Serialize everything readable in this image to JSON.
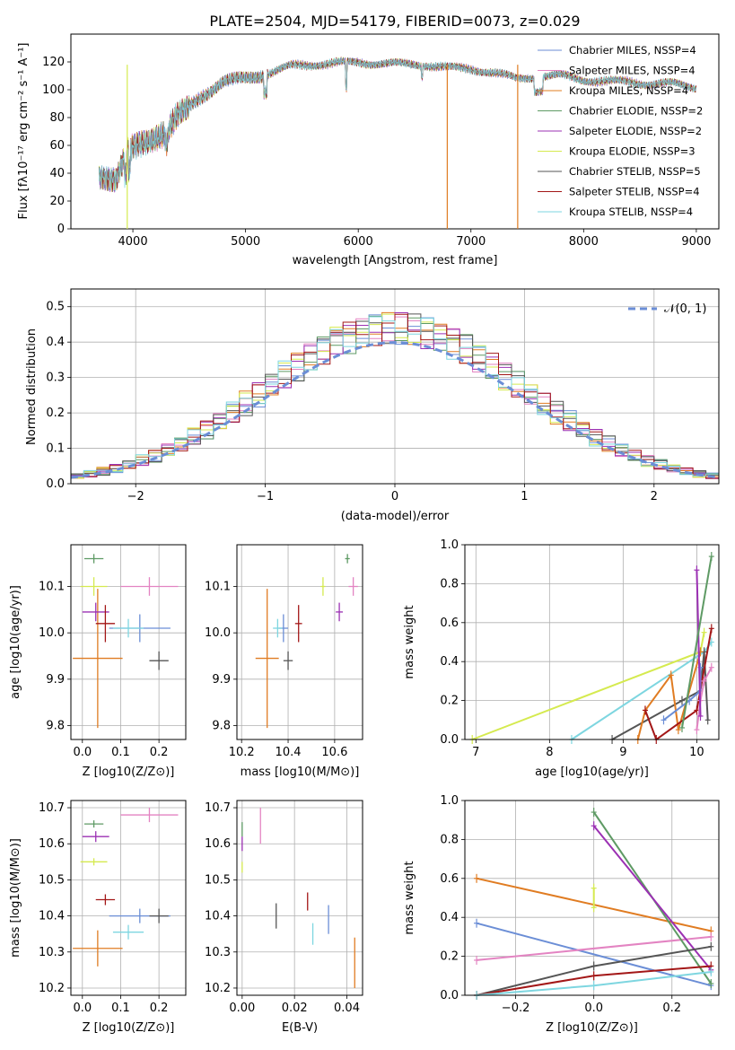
{
  "colors": {
    "chabrier_miles": "#6b8ed6",
    "salpeter_miles": "#e384c2",
    "kroupa_miles": "#e07c22",
    "chabrier_elodie": "#5e9a64",
    "salpeter_elodie": "#9b30b3",
    "kroupa_elodie": "#d5ea4f",
    "chabrier_stelib": "#555555",
    "salpeter_stelib": "#a31717",
    "kroupa_stelib": "#7ed6e0",
    "normal_curve": "#6b8ed6"
  },
  "chart_data": [
    {
      "id": "spectrum",
      "type": "line",
      "title": "PLATE=2504, MJD=54179, FIBERID=0073, z=0.029",
      "xlabel": "wavelength [Angstrom, rest frame]",
      "ylabel": "Flux [fλ10⁻¹⁷ erg cm⁻² s⁻¹ A⁻¹]",
      "xlim": [
        3450,
        9200
      ],
      "ylim": [
        0,
        140
      ],
      "xticks": [
        "4000",
        "5000",
        "6000",
        "7000",
        "8000",
        "9000"
      ],
      "yticks": [
        "0",
        "20",
        "40",
        "60",
        "80",
        "100",
        "120"
      ],
      "x_range_data": [
        3700,
        9000
      ],
      "approx_continuum": [
        [
          3700,
          40
        ],
        [
          3850,
          35
        ],
        [
          3950,
          55
        ],
        [
          4050,
          60
        ],
        [
          4150,
          63
        ],
        [
          4300,
          70
        ],
        [
          4400,
          82
        ],
        [
          4600,
          95
        ],
        [
          4800,
          105
        ],
        [
          5000,
          108
        ],
        [
          5200,
          112
        ],
        [
          5400,
          117
        ],
        [
          5600,
          118
        ],
        [
          5800,
          119
        ],
        [
          6000,
          120
        ],
        [
          6200,
          119
        ],
        [
          6400,
          118
        ],
        [
          6600,
          118
        ],
        [
          6800,
          116
        ],
        [
          7000,
          115
        ],
        [
          7200,
          112
        ],
        [
          7400,
          108
        ],
        [
          7600,
          110
        ],
        [
          7800,
          110
        ],
        [
          8000,
          107
        ],
        [
          8200,
          106
        ],
        [
          8400,
          106
        ],
        [
          8600,
          104
        ],
        [
          8800,
          104
        ],
        [
          9000,
          102
        ]
      ],
      "legend_position": "upper-right",
      "legend": [
        "Chabrier MILES, NSSP=4",
        "Salpeter MILES, NSSP=4",
        "Kroupa MILES, NSSP=4",
        "Chabrier ELODIE, NSSP=2",
        "Salpeter ELODIE, NSSP=2",
        "Kroupa ELODIE, NSSP=3",
        "Chabrier STELIB, NSSP=5",
        "Salpeter STELIB, NSSP=4",
        "Kroupa STELIB, NSSP=4"
      ]
    },
    {
      "id": "residuals",
      "type": "step",
      "xlabel": "(data-model)/error",
      "ylabel": "Normed distribution",
      "xlim": [
        -2.5,
        2.5
      ],
      "ylim": [
        0,
        0.55
      ],
      "xticks": [
        "−2",
        "−1",
        "0",
        "1",
        "2"
      ],
      "yticks": [
        "0.0",
        "0.1",
        "0.2",
        "0.3",
        "0.4",
        "0.5"
      ],
      "grid": true,
      "legend_position": "upper-right",
      "legend": [
        "𝒩(0, 1)"
      ],
      "bins": 50,
      "mean": 0,
      "sigma": 1
    },
    {
      "id": "age_vs_Z",
      "type": "errorbar",
      "xlabel": "Z [log10(Z/Z⊙)]",
      "ylabel": "age  [log10(age/yr)]",
      "xlim": [
        -0.03,
        0.27
      ],
      "ylim": [
        9.77,
        10.19
      ],
      "xticks": [
        "0.0",
        "0.1",
        "0.2"
      ],
      "yticks": [
        "9.8",
        "9.9",
        "10.0",
        "10.1"
      ],
      "points": [
        {
          "series": "chabrier_miles",
          "x": 0.15,
          "y": 10.01,
          "xerr": 0.08,
          "yerr": 0.03
        },
        {
          "series": "salpeter_miles",
          "x": 0.175,
          "y": 10.1,
          "xerr": 0.075,
          "yerr": 0.02
        },
        {
          "series": "kroupa_miles",
          "x": 0.04,
          "y": 9.945,
          "xerr": 0.065,
          "yerr": 0.15
        },
        {
          "series": "chabrier_elodie",
          "x": 0.03,
          "y": 10.16,
          "xerr": 0.025,
          "yerr": 0.01
        },
        {
          "series": "salpeter_elodie",
          "x": 0.035,
          "y": 10.045,
          "xerr": 0.035,
          "yerr": 0.02
        },
        {
          "series": "kroupa_elodie",
          "x": 0.03,
          "y": 10.1,
          "xerr": 0.035,
          "yerr": 0.02
        },
        {
          "series": "chabrier_stelib",
          "x": 0.2,
          "y": 9.94,
          "xerr": 0.025,
          "yerr": 0.02
        },
        {
          "series": "salpeter_stelib",
          "x": 0.06,
          "y": 10.02,
          "xerr": 0.025,
          "yerr": 0.04
        },
        {
          "series": "kroupa_stelib",
          "x": 0.12,
          "y": 10.01,
          "xerr": 0.04,
          "yerr": 0.02
        }
      ]
    },
    {
      "id": "age_vs_mass",
      "type": "errorbar",
      "xlabel": "mass [log10(M/M⊙)]",
      "xlim": [
        10.18,
        10.72
      ],
      "ylim": [
        9.77,
        10.19
      ],
      "xticks": [
        "10.2",
        "10.4",
        "10.6"
      ],
      "yticks": [
        "9.8",
        "9.9",
        "10.0",
        "10.1"
      ],
      "points": [
        {
          "series": "chabrier_miles",
          "x": 10.38,
          "y": 10.01,
          "xerr": 0.02,
          "yerr": 0.03
        },
        {
          "series": "salpeter_miles",
          "x": 10.68,
          "y": 10.1,
          "xerr": 0.02,
          "yerr": 0.02
        },
        {
          "series": "kroupa_miles",
          "x": 10.31,
          "y": 9.945,
          "xerr": 0.05,
          "yerr": 0.15
        },
        {
          "series": "chabrier_elodie",
          "x": 10.655,
          "y": 10.16,
          "xerr": 0.01,
          "yerr": 0.01
        },
        {
          "series": "salpeter_elodie",
          "x": 10.62,
          "y": 10.045,
          "xerr": 0.015,
          "yerr": 0.02
        },
        {
          "series": "kroupa_elodie",
          "x": 10.55,
          "y": 10.1,
          "xerr": 0.01,
          "yerr": 0.02
        },
        {
          "series": "chabrier_stelib",
          "x": 10.4,
          "y": 9.94,
          "xerr": 0.02,
          "yerr": 0.02
        },
        {
          "series": "salpeter_stelib",
          "x": 10.445,
          "y": 10.02,
          "xerr": 0.015,
          "yerr": 0.04
        },
        {
          "series": "kroupa_stelib",
          "x": 10.355,
          "y": 10.01,
          "xerr": 0.02,
          "yerr": 0.02
        }
      ]
    },
    {
      "id": "weight_vs_age",
      "type": "line",
      "xlabel": "age  [log10(age/yr)]",
      "ylabel": "mass weight",
      "xlim": [
        6.85,
        10.3
      ],
      "ylim": [
        0,
        1.0
      ],
      "xticks": [
        "7",
        "8",
        "9",
        "10"
      ],
      "yticks": [
        "0.0",
        "0.2",
        "0.4",
        "0.6",
        "0.8",
        "1.0"
      ],
      "series": [
        {
          "key": "kroupa_elodie",
          "points": [
            [
              6.95,
              0.0
            ],
            [
              10.05,
              0.45
            ],
            [
              10.1,
              0.55
            ]
          ]
        },
        {
          "key": "kroupa_stelib",
          "points": [
            [
              8.3,
              0.0
            ],
            [
              10.1,
              0.45
            ],
            [
              10.2,
              0.5
            ]
          ]
        },
        {
          "key": "chabrier_stelib",
          "points": [
            [
              8.85,
              0.0
            ],
            [
              9.8,
              0.2
            ],
            [
              10.05,
              0.25
            ],
            [
              10.1,
              0.45
            ],
            [
              10.15,
              0.1
            ]
          ]
        },
        {
          "key": "kroupa_miles",
          "points": [
            [
              9.2,
              0.0
            ],
            [
              9.3,
              0.15
            ],
            [
              9.65,
              0.33
            ],
            [
              9.75,
              0.05
            ],
            [
              10.05,
              0.45
            ]
          ]
        },
        {
          "key": "salpeter_stelib",
          "points": [
            [
              9.3,
              0.15
            ],
            [
              9.45,
              0.0
            ],
            [
              10.0,
              0.15
            ],
            [
              10.2,
              0.57
            ]
          ]
        },
        {
          "key": "chabrier_miles",
          "points": [
            [
              9.55,
              0.1
            ],
            [
              9.9,
              0.2
            ],
            [
              10.05,
              0.25
            ],
            [
              10.05,
              0.37
            ]
          ]
        },
        {
          "key": "salpeter_miles",
          "points": [
            [
              10.0,
              0.05
            ],
            [
              10.05,
              0.2
            ],
            [
              10.1,
              0.3
            ],
            [
              10.2,
              0.37
            ]
          ]
        },
        {
          "key": "salpeter_elodie",
          "points": [
            [
              10.0,
              0.87
            ],
            [
              10.05,
              0.12
            ]
          ]
        },
        {
          "key": "chabrier_elodie",
          "points": [
            [
              9.8,
              0.06
            ],
            [
              10.2,
              0.94
            ]
          ]
        }
      ]
    },
    {
      "id": "mass_vs_Z",
      "type": "errorbar",
      "xlabel": "Z [log10(Z/Z⊙)]",
      "ylabel": "mass [log10(M/M⊙)]",
      "xlim": [
        -0.03,
        0.27
      ],
      "ylim": [
        10.18,
        10.72
      ],
      "xticks": [
        "0.0",
        "0.1",
        "0.2"
      ],
      "yticks": [
        "10.2",
        "10.3",
        "10.4",
        "10.5",
        "10.6",
        "10.7"
      ],
      "points": [
        {
          "series": "chabrier_miles",
          "x": 0.15,
          "y": 10.4,
          "xerr": 0.08,
          "yerr": 0.02
        },
        {
          "series": "salpeter_miles",
          "x": 0.175,
          "y": 10.68,
          "xerr": 0.075,
          "yerr": 0.02
        },
        {
          "series": "kroupa_miles",
          "x": 0.04,
          "y": 10.31,
          "xerr": 0.065,
          "yerr": 0.05
        },
        {
          "series": "chabrier_elodie",
          "x": 0.03,
          "y": 10.655,
          "xerr": 0.025,
          "yerr": 0.01
        },
        {
          "series": "salpeter_elodie",
          "x": 0.035,
          "y": 10.62,
          "xerr": 0.035,
          "yerr": 0.015
        },
        {
          "series": "kroupa_elodie",
          "x": 0.03,
          "y": 10.55,
          "xerr": 0.035,
          "yerr": 0.01
        },
        {
          "series": "chabrier_stelib",
          "x": 0.2,
          "y": 10.4,
          "xerr": 0.025,
          "yerr": 0.02
        },
        {
          "series": "salpeter_stelib",
          "x": 0.06,
          "y": 10.445,
          "xerr": 0.025,
          "yerr": 0.015
        },
        {
          "series": "kroupa_stelib",
          "x": 0.12,
          "y": 10.355,
          "xerr": 0.04,
          "yerr": 0.02
        }
      ]
    },
    {
      "id": "mass_vs_ebv",
      "type": "errorbar",
      "xlabel": "E(B-V)",
      "xlim": [
        -0.002,
        0.046
      ],
      "ylim": [
        10.18,
        10.72
      ],
      "xticks": [
        "0.00",
        "0.02",
        "0.04"
      ],
      "yticks": [
        "10.2",
        "10.3",
        "10.4",
        "10.5",
        "10.6",
        "10.7"
      ],
      "points": [
        {
          "series": "chabrier_miles",
          "x": 0.033,
          "y": 10.39,
          "yerr": 0.04
        },
        {
          "series": "salpeter_miles",
          "x": 0.007,
          "y": 10.65,
          "yerr": 0.05
        },
        {
          "series": "kroupa_miles",
          "x": 0.043,
          "y": 10.27,
          "yerr": 0.07
        },
        {
          "series": "chabrier_elodie",
          "x": 0.0,
          "y": 10.64,
          "yerr": 0.02
        },
        {
          "series": "salpeter_elodie",
          "x": 0.0,
          "y": 10.6,
          "yerr": 0.02
        },
        {
          "series": "kroupa_elodie",
          "x": 0.0,
          "y": 10.535,
          "yerr": 0.015
        },
        {
          "series": "chabrier_stelib",
          "x": 0.013,
          "y": 10.4,
          "yerr": 0.035
        },
        {
          "series": "salpeter_stelib",
          "x": 0.025,
          "y": 10.44,
          "yerr": 0.025
        },
        {
          "series": "kroupa_stelib",
          "x": 0.027,
          "y": 10.35,
          "yerr": 0.03
        }
      ]
    },
    {
      "id": "weight_vs_Z",
      "type": "line",
      "xlabel": "Z [log10(Z/Z⊙)]",
      "ylabel": "mass weight",
      "xlim": [
        -0.33,
        0.32
      ],
      "ylim": [
        0,
        1.0
      ],
      "xticks": [
        "−0.2",
        "0.0",
        "0.2"
      ],
      "yticks": [
        "0.0",
        "0.2",
        "0.4",
        "0.6",
        "0.8",
        "1.0"
      ],
      "series": [
        {
          "key": "kroupa_miles",
          "points": [
            [
              -0.3,
              0.6
            ],
            [
              0.3,
              0.33
            ]
          ]
        },
        {
          "key": "chabrier_miles",
          "points": [
            [
              -0.3,
              0.37
            ],
            [
              0.3,
              0.05
            ]
          ]
        },
        {
          "key": "salpeter_miles",
          "points": [
            [
              -0.3,
              0.18
            ],
            [
              0.3,
              0.3
            ]
          ]
        },
        {
          "key": "chabrier_elodie",
          "points": [
            [
              0.0,
              0.94
            ],
            [
              0.3,
              0.06
            ]
          ]
        },
        {
          "key": "salpeter_elodie",
          "points": [
            [
              0.0,
              0.87
            ],
            [
              0.3,
              0.13
            ]
          ]
        },
        {
          "key": "kroupa_elodie",
          "points": [
            [
              0.0,
              0.55
            ],
            [
              0.0,
              0.45
            ]
          ]
        },
        {
          "key": "chabrier_stelib",
          "points": [
            [
              -0.3,
              0.0
            ],
            [
              0.0,
              0.15
            ],
            [
              0.3,
              0.25
            ]
          ]
        },
        {
          "key": "salpeter_stelib",
          "points": [
            [
              -0.3,
              0.0
            ],
            [
              0.0,
              0.1
            ],
            [
              0.3,
              0.15
            ]
          ]
        },
        {
          "key": "kroupa_stelib",
          "points": [
            [
              -0.3,
              0.0
            ],
            [
              0.0,
              0.05
            ],
            [
              0.3,
              0.12
            ]
          ]
        }
      ]
    }
  ]
}
